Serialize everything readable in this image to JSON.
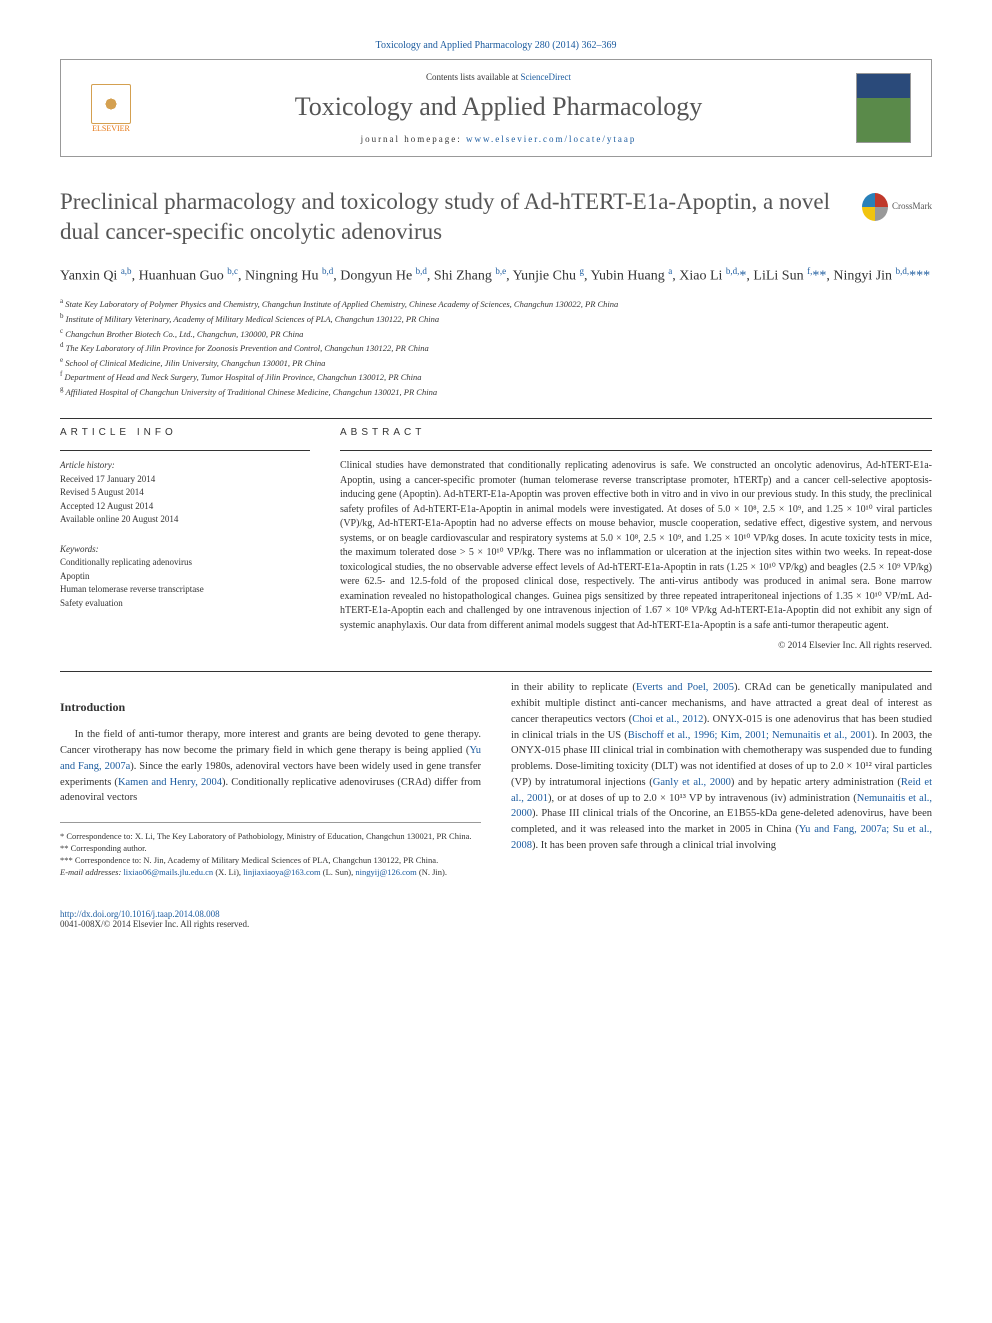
{
  "journal_ref": "Toxicology and Applied Pharmacology 280 (2014) 362–369",
  "header": {
    "contents_prefix": "Contents lists available at ",
    "contents_link": "ScienceDirect",
    "journal_title": "Toxicology and Applied Pharmacology",
    "homepage_prefix": "journal homepage: ",
    "homepage_url": "www.elsevier.com/locate/ytaap",
    "publisher": "ELSEVIER"
  },
  "crossmark": "CrossMark",
  "title": "Preclinical pharmacology and toxicology study of Ad-hTERT-E1a-Apoptin, a novel dual cancer-specific oncolytic adenovirus",
  "authors_html": "Yanxin Qi <sup class='sup'>a,b</sup>, Huanhuan Guo <sup class='sup'>b,c</sup>, Ningning Hu <sup class='sup'>b,d</sup>, Dongyun He <sup class='sup'>b,d</sup>, Shi Zhang <sup class='sup'>b,e</sup>, Yunjie Chu <sup class='sup'>g</sup>, Yubin Huang <sup class='sup'>a</sup>, Xiao Li <sup class='sup'>b,d,</sup><span class='star'>*</span>, LiLi Sun <sup class='sup'>f,</sup><span class='star'>**</span>, Ningyi Jin <sup class='sup'>b,d,</sup><span class='star'>***</span>",
  "affiliations": [
    {
      "sup": "a",
      "text": "State Key Laboratory of Polymer Physics and Chemistry, Changchun Institute of Applied Chemistry, Chinese Academy of Sciences, Changchun 130022, PR China"
    },
    {
      "sup": "b",
      "text": "Institute of Military Veterinary, Academy of Military Medical Sciences of PLA, Changchun 130122, PR China"
    },
    {
      "sup": "c",
      "text": "Changchun Brother Biotech Co., Ltd., Changchun, 130000, PR China"
    },
    {
      "sup": "d",
      "text": "The Key Laboratory of Jilin Province for Zoonosis Prevention and Control, Changchun 130122, PR China"
    },
    {
      "sup": "e",
      "text": "School of Clinical Medicine, Jilin University, Changchun 130001, PR China"
    },
    {
      "sup": "f",
      "text": "Department of Head and Neck Surgery, Tumor Hospital of Jilin Province, Changchun 130012, PR China"
    },
    {
      "sup": "g",
      "text": "Affiliated Hospital of Changchun University of Traditional Chinese Medicine, Changchun 130021, PR China"
    }
  ],
  "info": {
    "heading": "ARTICLE INFO",
    "history_label": "Article history:",
    "history": [
      "Received 17 January 2014",
      "Revised 5 August 2014",
      "Accepted 12 August 2014",
      "Available online 20 August 2014"
    ],
    "keywords_label": "Keywords:",
    "keywords": [
      "Conditionally replicating adenovirus",
      "Apoptin",
      "Human telomerase reverse transcriptase",
      "Safety evaluation"
    ]
  },
  "abstract": {
    "heading": "ABSTRACT",
    "text": "Clinical studies have demonstrated that conditionally replicating adenovirus is safe. We constructed an oncolytic adenovirus, Ad-hTERT-E1a-Apoptin, using a cancer-specific promoter (human telomerase reverse transcriptase promoter, hTERTp) and a cancer cell-selective apoptosis-inducing gene (Apoptin). Ad-hTERT-E1a-Apoptin was proven effective both in vitro and in vivo in our previous study. In this study, the preclinical safety profiles of Ad-hTERT-E1a-Apoptin in animal models were investigated. At doses of 5.0 × 10⁸, 2.5 × 10⁹, and 1.25 × 10¹⁰ viral particles (VP)/kg, Ad-hTERT-E1a-Apoptin had no adverse effects on mouse behavior, muscle cooperation, sedative effect, digestive system, and nervous systems, or on beagle cardiovascular and respiratory systems at 5.0 × 10⁸, 2.5 × 10⁹, and 1.25 × 10¹⁰ VP/kg doses. In acute toxicity tests in mice, the maximum tolerated dose > 5 × 10¹⁰ VP/kg. There was no inflammation or ulceration at the injection sites within two weeks. In repeat-dose toxicological studies, the no observable adverse effect levels of Ad-hTERT-E1a-Apoptin in rats (1.25 × 10¹⁰ VP/kg) and beagles (2.5 × 10⁹ VP/kg) were 62.5- and 12.5-fold of the proposed clinical dose, respectively. The anti-virus antibody was produced in animal sera. Bone marrow examination revealed no histopathological changes. Guinea pigs sensitized by three repeated intraperitoneal injections of 1.35 × 10¹⁰ VP/mL Ad-hTERT-E1a-Apoptin each and challenged by one intravenous injection of 1.67 × 10⁸ VP/kg Ad-hTERT-E1a-Apoptin did not exhibit any sign of systemic anaphylaxis. Our data from different animal models suggest that Ad-hTERT-E1a-Apoptin is a safe anti-tumor therapeutic agent.",
    "copyright": "© 2014 Elsevier Inc. All rights reserved."
  },
  "intro": {
    "heading": "Introduction",
    "col1": "In the field of anti-tumor therapy, more interest and grants are being devoted to gene therapy. Cancer virotherapy has now become the primary field in which gene therapy is being applied (<a>Yu and Fang, 2007a</a>). Since the early 1980s, adenoviral vectors have been widely used in gene transfer experiments (<a>Kamen and Henry, 2004</a>). Conditionally replicative adenoviruses (CRAd) differ from adenoviral vectors",
    "col2": "in their ability to replicate (<a>Everts and Poel, 2005</a>). CRAd can be genetically manipulated and exhibit multiple distinct anti-cancer mechanisms, and have attracted a great deal of interest as cancer therapeutics vectors (<a>Choi et al., 2012</a>). ONYX-015 is one adenovirus that has been studied in clinical trials in the US (<a>Bischoff et al., 1996; Kim, 2001; Nemunaitis et al., 2001</a>). In 2003, the ONYX-015 phase III clinical trial in combination with chemotherapy was suspended due to funding problems. Dose-limiting toxicity (DLT) was not identified at doses of up to 2.0 × 10¹² viral particles (VP) by intratumoral injections (<a>Ganly et al., 2000</a>) and by hepatic artery administration (<a>Reid et al., 2001</a>), or at doses of up to 2.0 × 10¹³ VP by intravenous (iv) administration (<a>Nemunaitis et al., 2000</a>). Phase III clinical trials of the Oncorine, an E1B55-kDa gene-deleted adenovirus, have been completed, and it was released into the market in 2005 in China (<a>Yu and Fang, 2007a; Su et al., 2008</a>). It has been proven safe through a clinical trial involving"
  },
  "footnotes": {
    "corr1": "* Correspondence to: X. Li, The Key Laboratory of Pathobiology, Ministry of Education, Changchun 130021, PR China.",
    "corr2": "** Corresponding author.",
    "corr3": "*** Correspondence to: N. Jin, Academy of Military Medical Sciences of PLA, Changchun 130122, PR China.",
    "emails_label": "E-mail addresses:",
    "emails": " <a>lixiao06@mails.jlu.edu.cn</a> (X. Li), <a>linjiaxiaoya@163.com</a> (L. Sun), <a>ningyij@126.com</a> (N. Jin)."
  },
  "footer": {
    "doi": "http://dx.doi.org/10.1016/j.taap.2014.08.008",
    "issn": "0041-008X/© 2014 Elsevier Inc. All rights reserved."
  },
  "colors": {
    "link": "#1a5a9e",
    "text": "#333333",
    "title": "#555555",
    "elsevier_orange": "#e67817",
    "cover_top": "#2a4a7a",
    "cover_bottom": "#5a8a4a"
  },
  "typography": {
    "title_fontsize": 23,
    "journal_title_fontsize": 26,
    "body_fontsize": 10.5,
    "abstract_fontsize": 10,
    "affil_fontsize": 8.5,
    "footnote_fontsize": 8.5
  }
}
